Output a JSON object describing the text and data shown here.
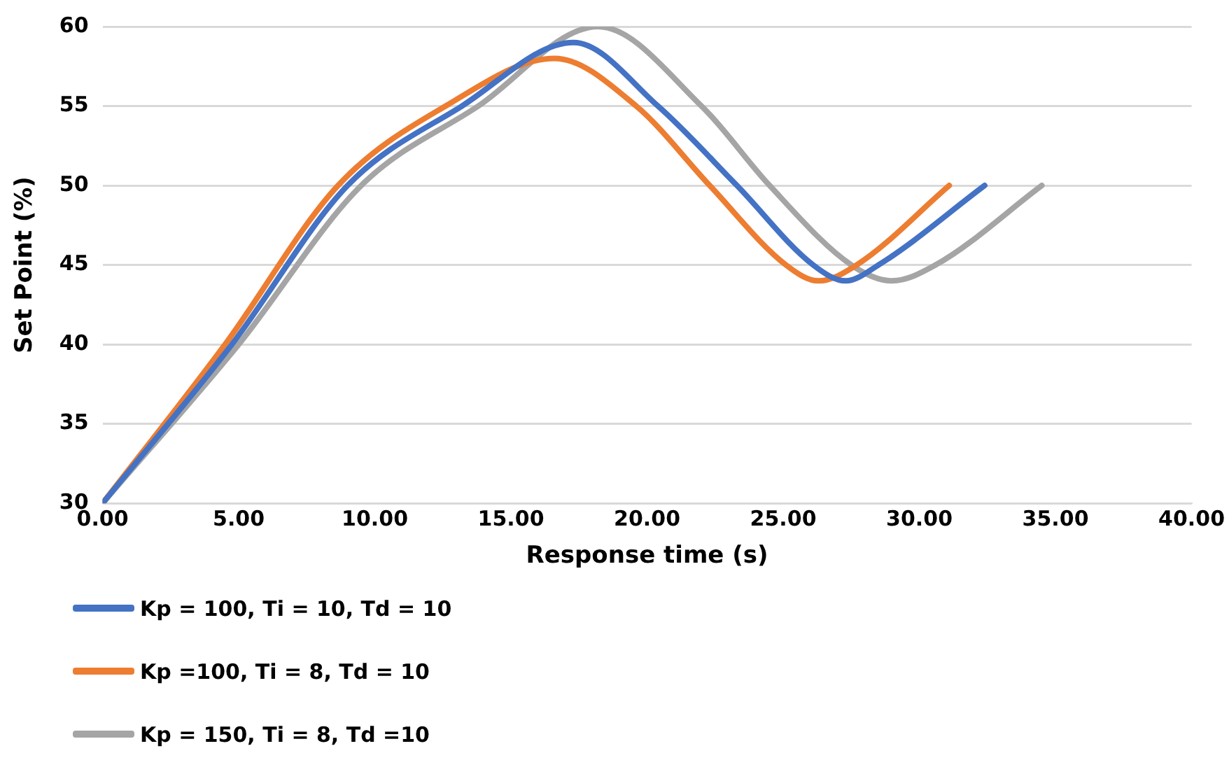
{
  "chart_data": {
    "type": "line",
    "xlabel": "Response time (s)",
    "ylabel": "Set Point (%)",
    "xlim": [
      0,
      40
    ],
    "xticks": [
      {
        "value": 0,
        "label": "0.00"
      },
      {
        "value": 5,
        "label": "5.00"
      },
      {
        "value": 10,
        "label": "10.00"
      },
      {
        "value": 15,
        "label": "15.00"
      },
      {
        "value": 20,
        "label": "20.00"
      },
      {
        "value": 25,
        "label": "25.00"
      },
      {
        "value": 30,
        "label": "30.00"
      },
      {
        "value": 35,
        "label": "35.00"
      },
      {
        "value": 40,
        "label": "40.00"
      }
    ],
    "ylim": [
      30,
      60
    ],
    "yticks": [
      30,
      35,
      40,
      45,
      50,
      55,
      60
    ],
    "grid": "y",
    "legend": "bottom",
    "marker": "none",
    "line_style": "solid",
    "series": [
      {
        "name": "Kp = 100, Ti = 10, Td = 10",
        "color": "#4472c4",
        "x": [
          0,
          4.75,
          9,
          13.2,
          17.3,
          20.4,
          23.3,
          26.1,
          27.3,
          28.5,
          32.4
        ],
        "values": [
          30,
          40,
          50,
          55,
          59,
          55,
          50,
          45,
          44,
          45,
          50
        ]
      },
      {
        "name": "Kp =100, Ti = 8, Td = 10",
        "color": "#ed7d31",
        "x": [
          0,
          4.5,
          8.65,
          12.6,
          16.6,
          19.6,
          22.3,
          25.1,
          26.3,
          27.7,
          31.1
        ],
        "values": [
          30,
          40,
          50,
          55,
          58,
          55,
          50,
          45,
          44,
          45,
          50
        ]
      },
      {
        "name": "Kp = 150, Ti = 8, Td =10",
        "color": "#a5a5a5",
        "x": [
          0,
          5,
          9.5,
          13.8,
          18.2,
          22,
          24.5,
          27.5,
          29,
          30.6,
          34.5
        ],
        "values": [
          30,
          40,
          50,
          55,
          60,
          55,
          50,
          45,
          44,
          45,
          50
        ]
      }
    ]
  }
}
